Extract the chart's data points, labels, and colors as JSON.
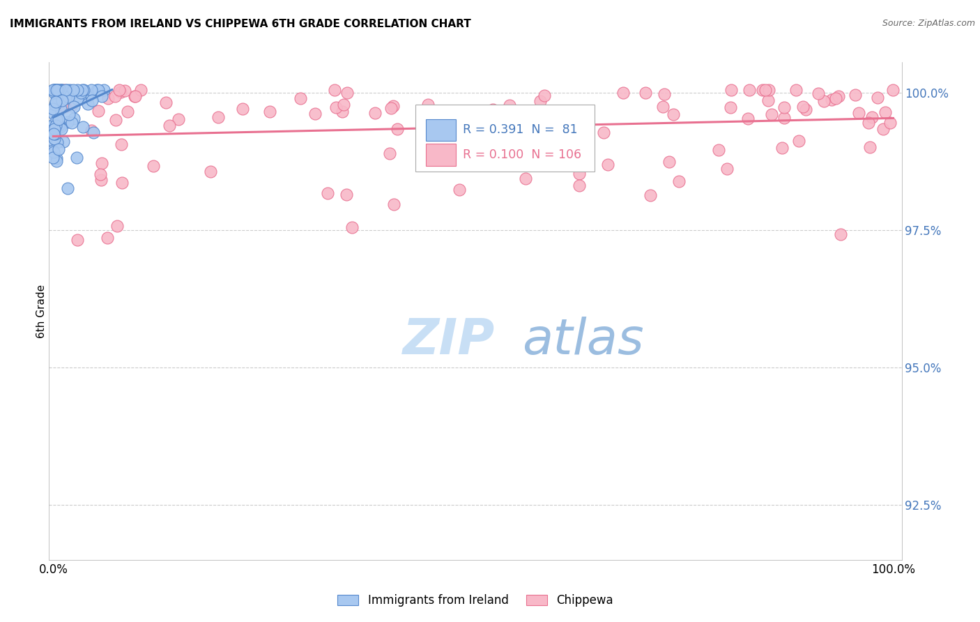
{
  "title": "IMMIGRANTS FROM IRELAND VS CHIPPEWA 6TH GRADE CORRELATION CHART",
  "source": "Source: ZipAtlas.com",
  "ylabel": "6th Grade",
  "yticks": [
    92.5,
    95.0,
    97.5,
    100.0
  ],
  "ytick_labels": [
    "92.5%",
    "95.0%",
    "97.5%",
    "100.0%"
  ],
  "ymin": 91.5,
  "ymax": 100.55,
  "xmin": -0.5,
  "xmax": 101,
  "legend_blue_r": "0.391",
  "legend_blue_n": "81",
  "legend_pink_r": "0.100",
  "legend_pink_n": "106",
  "blue_fill": "#A8C8F0",
  "blue_edge": "#5588CC",
  "pink_fill": "#F8B8C8",
  "pink_edge": "#E87090",
  "trend_blue_color": "#5588CC",
  "trend_pink_color": "#E87090",
  "grid_color": "#cccccc",
  "tick_color": "#4477BB",
  "watermark_zip_color": "#C8DFF5",
  "watermark_atlas_color": "#9BBDE0"
}
